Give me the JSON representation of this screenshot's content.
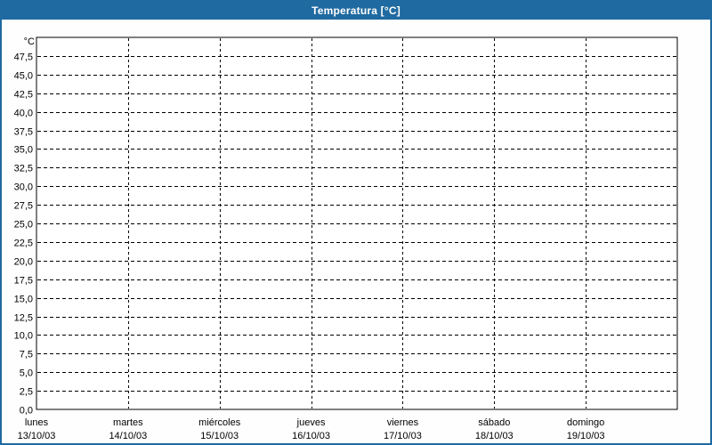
{
  "window": {
    "title": "Temperatura [°C]"
  },
  "colors": {
    "titlebar_bg": "#1F6AA0",
    "titlebar_text": "#FFFFFF",
    "frame_border": "#1F6AA0",
    "page_bg": "#FDFEFD",
    "plot_bg": "#FEFFFE",
    "plot_border": "#000000",
    "grid": "#000000",
    "text": "#000000"
  },
  "chart_data": {
    "type": "line",
    "title": "Temperatura [°C]",
    "y_unit_label": "°C",
    "ylim": [
      0,
      50
    ],
    "ytick_step": 2.5,
    "yticks": [
      {
        "value": 0.0,
        "label": "0,0"
      },
      {
        "value": 2.5,
        "label": "2,5"
      },
      {
        "value": 5.0,
        "label": "5,0"
      },
      {
        "value": 7.5,
        "label": "7,5"
      },
      {
        "value": 10.0,
        "label": "10,0"
      },
      {
        "value": 12.5,
        "label": "12,5"
      },
      {
        "value": 15.0,
        "label": "15,0"
      },
      {
        "value": 17.5,
        "label": "17,5"
      },
      {
        "value": 20.0,
        "label": "20,0"
      },
      {
        "value": 22.5,
        "label": "22,5"
      },
      {
        "value": 25.0,
        "label": "25,0"
      },
      {
        "value": 27.5,
        "label": "27,5"
      },
      {
        "value": 30.0,
        "label": "30,0"
      },
      {
        "value": 32.5,
        "label": "32,5"
      },
      {
        "value": 35.0,
        "label": "35,0"
      },
      {
        "value": 37.5,
        "label": "37,5"
      },
      {
        "value": 40.0,
        "label": "40,0"
      },
      {
        "value": 42.5,
        "label": "42,5"
      },
      {
        "value": 45.0,
        "label": "45,0"
      },
      {
        "value": 47.5,
        "label": "47,5"
      }
    ],
    "x_categories": [
      {
        "day": "lunes",
        "date": "13/10/03"
      },
      {
        "day": "martes",
        "date": "14/10/03"
      },
      {
        "day": "miércoles",
        "date": "15/10/03"
      },
      {
        "day": "jueves",
        "date": "16/10/03"
      },
      {
        "day": "viernes",
        "date": "17/10/03"
      },
      {
        "day": "sábado",
        "date": "18/10/03"
      },
      {
        "day": "domingo",
        "date": "19/10/03"
      }
    ],
    "series": [],
    "grid": "dashed",
    "legend": "none"
  }
}
